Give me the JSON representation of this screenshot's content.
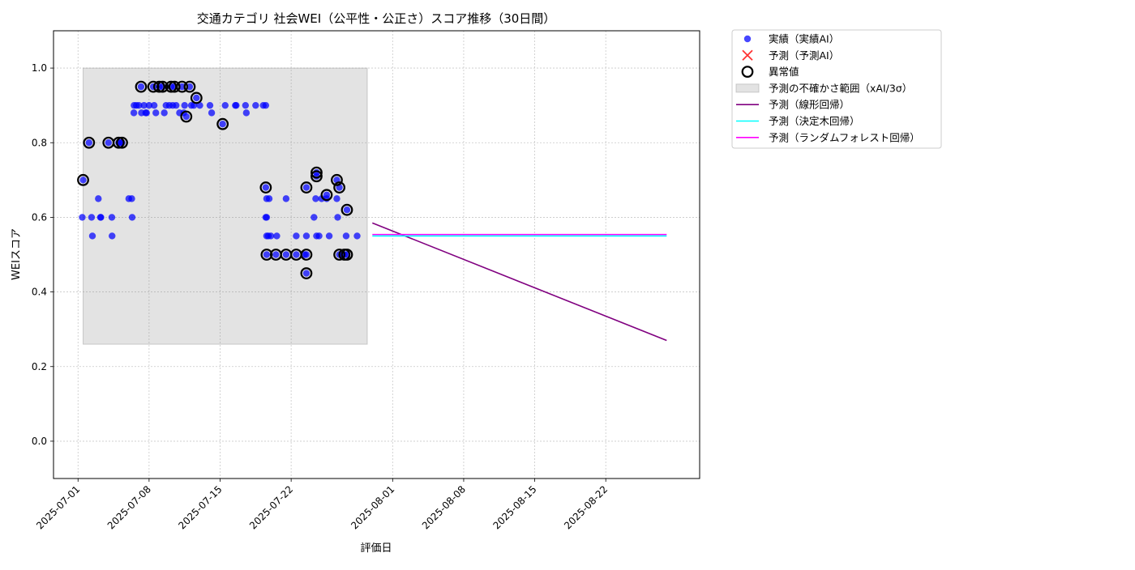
{
  "chart_data": {
    "type": "scatter",
    "title": "交通カテゴリ 社会WEI（公平性・公正さ）スコア推移（30日間）",
    "xlabel": "評価日",
    "ylabel": "WEIスコア",
    "xlim": [
      "2025-06-28T14:00",
      "2025-08-31T06:00"
    ],
    "ylim": [
      -0.1,
      1.1
    ],
    "grid": true,
    "legend_position": "outside-top-right",
    "x_ticks": [
      "2025-07-01",
      "2025-07-08",
      "2025-07-15",
      "2025-07-22",
      "2025-08-01",
      "2025-08-08",
      "2025-08-15",
      "2025-08-22"
    ],
    "y_ticks": [
      "0.0",
      "0.2",
      "0.4",
      "0.6",
      "0.8",
      "1.0"
    ],
    "legend": [
      {
        "label": "実績（実績AI）",
        "marker": "dot",
        "color": "#0000ff"
      },
      {
        "label": "予測（予測AI）",
        "marker": "x",
        "color": "#ff0000"
      },
      {
        "label": "異常値",
        "marker": "ring",
        "color": "#000000"
      },
      {
        "label": "予測の不確かさ範囲（xAI/3σ）",
        "marker": "band",
        "color": "#d9d9d9"
      },
      {
        "label": "予測（線形回帰）",
        "marker": "line",
        "color": "#800080"
      },
      {
        "label": "予測（決定木回帰）",
        "marker": "line",
        "color": "#00ffff"
      },
      {
        "label": "予測（ランダムフォレスト回帰）",
        "marker": "line",
        "color": "#ff00ff"
      }
    ],
    "uncertainty_band": {
      "x": [
        "2025-07-01T12:00",
        "2025-07-29T12:00"
      ],
      "y": [
        0.26,
        1.0
      ]
    },
    "actual": {
      "name": "実績（実績AI）",
      "color": "#0000ff",
      "points": [
        [
          "2025-07-01T10:00",
          0.6
        ],
        [
          "2025-07-01T12:00",
          0.7
        ],
        [
          "2025-07-02T02:00",
          0.8
        ],
        [
          "2025-07-02T08:00",
          0.6
        ],
        [
          "2025-07-02T10:00",
          0.55
        ],
        [
          "2025-07-03T00:00",
          0.65
        ],
        [
          "2025-07-03T05:00",
          0.6
        ],
        [
          "2025-07-03T06:00",
          0.6
        ],
        [
          "2025-07-04T00:00",
          0.8
        ],
        [
          "2025-07-04T08:00",
          0.6
        ],
        [
          "2025-07-04T08:30",
          0.55
        ],
        [
          "2025-07-05T00:00",
          0.8
        ],
        [
          "2025-07-05T05:00",
          0.8
        ],
        [
          "2025-07-05T08:00",
          0.8
        ],
        [
          "2025-07-06T00:00",
          0.65
        ],
        [
          "2025-07-06T07:00",
          0.65
        ],
        [
          "2025-07-06T08:00",
          0.6
        ],
        [
          "2025-07-06T12:00",
          0.88
        ],
        [
          "2025-07-06T12:30",
          0.9
        ],
        [
          "2025-07-06T18:00",
          0.9
        ],
        [
          "2025-07-07T00:00",
          0.9
        ],
        [
          "2025-07-07T05:00",
          0.95
        ],
        [
          "2025-07-07T06:00",
          0.88
        ],
        [
          "2025-07-07T12:00",
          0.9
        ],
        [
          "2025-07-07T16:00",
          0.88
        ],
        [
          "2025-07-07T18:00",
          0.88
        ],
        [
          "2025-07-08T00:00",
          0.9
        ],
        [
          "2025-07-08T10:00",
          0.95
        ],
        [
          "2025-07-08T12:00",
          0.9
        ],
        [
          "2025-07-08T16:00",
          0.88
        ],
        [
          "2025-07-09T00:00",
          0.95
        ],
        [
          "2025-07-09T08:00",
          0.95
        ],
        [
          "2025-07-09T12:00",
          0.88
        ],
        [
          "2025-07-09T16:00",
          0.9
        ],
        [
          "2025-07-10T00:00",
          0.9
        ],
        [
          "2025-07-10T04:00",
          0.95
        ],
        [
          "2025-07-10T08:00",
          0.9
        ],
        [
          "2025-07-10T12:00",
          0.95
        ],
        [
          "2025-07-10T16:00",
          0.9
        ],
        [
          "2025-07-11T00:00",
          0.88
        ],
        [
          "2025-07-11T06:00",
          0.95
        ],
        [
          "2025-07-11T10:00",
          0.88
        ],
        [
          "2025-07-11T12:00",
          0.9
        ],
        [
          "2025-07-11T16:00",
          0.87
        ],
        [
          "2025-07-12T00:00",
          0.95
        ],
        [
          "2025-07-12T04:00",
          0.9
        ],
        [
          "2025-07-12T10:00",
          0.9
        ],
        [
          "2025-07-12T16:00",
          0.92
        ],
        [
          "2025-07-13T00:00",
          0.9
        ],
        [
          "2025-07-14T00:00",
          0.9
        ],
        [
          "2025-07-14T04:00",
          0.88
        ],
        [
          "2025-07-15T06:00",
          0.85
        ],
        [
          "2025-07-15T12:00",
          0.9
        ],
        [
          "2025-07-16T12:00",
          0.9
        ],
        [
          "2025-07-16T14:00",
          0.9
        ],
        [
          "2025-07-17T12:00",
          0.9
        ],
        [
          "2025-07-17T14:00",
          0.88
        ],
        [
          "2025-07-18T12:00",
          0.9
        ],
        [
          "2025-07-19T06:00",
          0.9
        ],
        [
          "2025-07-19T12:00",
          0.9
        ],
        [
          "2025-07-19T12:00",
          0.68
        ],
        [
          "2025-07-19T12:00",
          0.6
        ],
        [
          "2025-07-19T14:00",
          0.6
        ],
        [
          "2025-07-19T14:00",
          0.65
        ],
        [
          "2025-07-19T14:00",
          0.55
        ],
        [
          "2025-07-19T14:00",
          0.5
        ],
        [
          "2025-07-19T18:00",
          0.55
        ],
        [
          "2025-07-19T20:00",
          0.65
        ],
        [
          "2025-07-20T00:00",
          0.55
        ],
        [
          "2025-07-20T12:00",
          0.5
        ],
        [
          "2025-07-20T14:00",
          0.55
        ],
        [
          "2025-07-21T12:00",
          0.65
        ],
        [
          "2025-07-21T12:00",
          0.5
        ],
        [
          "2025-07-22T12:00",
          0.55
        ],
        [
          "2025-07-22T12:00",
          0.5
        ],
        [
          "2025-07-23T08:00",
          0.5
        ],
        [
          "2025-07-23T12:00",
          0.45
        ],
        [
          "2025-07-23T12:00",
          0.55
        ],
        [
          "2025-07-23T12:00",
          0.5
        ],
        [
          "2025-07-23T12:00",
          0.68
        ],
        [
          "2025-07-24T06:00",
          0.6
        ],
        [
          "2025-07-24T10:00",
          0.65
        ],
        [
          "2025-07-24T12:00",
          0.55
        ],
        [
          "2025-07-24T12:00",
          0.71
        ],
        [
          "2025-07-24T12:00",
          0.72
        ],
        [
          "2025-07-24T18:00",
          0.55
        ],
        [
          "2025-07-25T00:00",
          0.65
        ],
        [
          "2025-07-25T12:00",
          0.65
        ],
        [
          "2025-07-25T12:00",
          0.66
        ],
        [
          "2025-07-25T18:00",
          0.55
        ],
        [
          "2025-07-26T12:00",
          0.7
        ],
        [
          "2025-07-26T12:00",
          0.65
        ],
        [
          "2025-07-26T14:00",
          0.6
        ],
        [
          "2025-07-26T18:00",
          0.68
        ],
        [
          "2025-07-26T18:00",
          0.5
        ],
        [
          "2025-07-27T00:00",
          0.5
        ],
        [
          "2025-07-27T06:00",
          0.5
        ],
        [
          "2025-07-27T10:00",
          0.55
        ],
        [
          "2025-07-27T12:00",
          0.5
        ],
        [
          "2025-07-27T12:00",
          0.62
        ],
        [
          "2025-07-28T12:00",
          0.55
        ]
      ]
    },
    "anomalies": {
      "name": "異常値",
      "color": "#000000",
      "points": [
        [
          "2025-07-01T12:00",
          0.7
        ],
        [
          "2025-07-02T02:00",
          0.8
        ],
        [
          "2025-07-04T00:00",
          0.8
        ],
        [
          "2025-07-05T00:00",
          0.8
        ],
        [
          "2025-07-05T08:00",
          0.8
        ],
        [
          "2025-07-07T05:00",
          0.95
        ],
        [
          "2025-07-08T10:00",
          0.95
        ],
        [
          "2025-07-09T00:00",
          0.95
        ],
        [
          "2025-07-09T08:00",
          0.95
        ],
        [
          "2025-07-10T04:00",
          0.95
        ],
        [
          "2025-07-10T12:00",
          0.95
        ],
        [
          "2025-07-11T06:00",
          0.95
        ],
        [
          "2025-07-11T16:00",
          0.87
        ],
        [
          "2025-07-12T00:00",
          0.95
        ],
        [
          "2025-07-12T16:00",
          0.92
        ],
        [
          "2025-07-15T06:00",
          0.85
        ],
        [
          "2025-07-19T12:00",
          0.68
        ],
        [
          "2025-07-19T14:00",
          0.5
        ],
        [
          "2025-07-20T12:00",
          0.5
        ],
        [
          "2025-07-21T12:00",
          0.5
        ],
        [
          "2025-07-22T12:00",
          0.5
        ],
        [
          "2025-07-23T12:00",
          0.45
        ],
        [
          "2025-07-23T12:00",
          0.5
        ],
        [
          "2025-07-23T12:00",
          0.68
        ],
        [
          "2025-07-24T12:00",
          0.71
        ],
        [
          "2025-07-24T12:00",
          0.72
        ],
        [
          "2025-07-25T12:00",
          0.66
        ],
        [
          "2025-07-26T12:00",
          0.7
        ],
        [
          "2025-07-26T18:00",
          0.68
        ],
        [
          "2025-07-26T18:00",
          0.5
        ],
        [
          "2025-07-27T06:00",
          0.5
        ],
        [
          "2025-07-27T12:00",
          0.5
        ],
        [
          "2025-07-27T12:00",
          0.62
        ]
      ]
    },
    "forecast_lines": [
      {
        "name": "予測（線形回帰）",
        "color": "#800080",
        "x": [
          "2025-07-30T00:00",
          "2025-08-28T00:00"
        ],
        "y": [
          0.585,
          0.27
        ]
      },
      {
        "name": "予測（決定木回帰）",
        "color": "#00ffff",
        "x": [
          "2025-07-30T00:00",
          "2025-08-28T00:00"
        ],
        "y": [
          0.55,
          0.55
        ]
      },
      {
        "name": "予測（ランダムフォレスト回帰）",
        "color": "#ff00ff",
        "x": [
          "2025-07-30T00:00",
          "2025-08-28T00:00"
        ],
        "y": [
          0.554,
          0.554
        ]
      }
    ]
  }
}
